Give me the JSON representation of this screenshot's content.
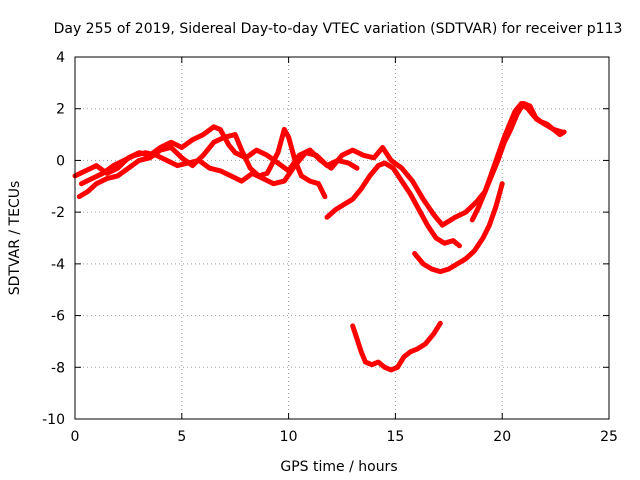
{
  "chart_data": {
    "type": "scatter",
    "title": "Day 255 of 2019, Sidereal Day-to-day VTEC variation (SDTVAR) for receiver p113",
    "xlabel": "GPS time / hours",
    "ylabel": "SDTVAR / TECUs",
    "xlim": [
      0,
      25
    ],
    "ylim": [
      -10,
      4
    ],
    "xticks": [
      0,
      5,
      10,
      15,
      20,
      25
    ],
    "yticks": [
      -10,
      -8,
      -6,
      -4,
      -2,
      0,
      2,
      4
    ],
    "xtick_labels": [
      "0",
      "5",
      "10",
      "15",
      "20",
      "25"
    ],
    "ytick_labels": [
      "-10",
      "-8",
      "-6",
      "-4",
      "-2",
      "0",
      "2",
      "4"
    ],
    "grid": true,
    "legend": "none",
    "marker": "+",
    "color": "#ff0000",
    "series": [
      {
        "name": "track-1",
        "points": [
          [
            0,
            -0.6
          ],
          [
            0.5,
            -0.4
          ],
          [
            1,
            -0.2
          ],
          [
            1.5,
            -0.5
          ],
          [
            2,
            -0.3
          ],
          [
            2.5,
            0.1
          ],
          [
            3,
            0.3
          ],
          [
            3.5,
            0.2
          ],
          [
            4,
            0.5
          ],
          [
            4.5,
            0.7
          ],
          [
            5,
            0.5
          ],
          [
            5.5,
            0.8
          ],
          [
            6,
            1.0
          ],
          [
            6.5,
            1.3
          ],
          [
            6.8,
            1.2
          ],
          [
            7.2,
            0.6
          ],
          [
            7.5,
            0.3
          ],
          [
            8,
            0.1
          ],
          [
            8.5,
            0.4
          ],
          [
            9,
            0.2
          ],
          [
            9.5,
            -0.1
          ],
          [
            10,
            -0.4
          ],
          [
            10.5,
            0.2
          ],
          [
            11,
            0.4
          ],
          [
            11.5,
            0.0
          ],
          [
            12,
            -0.3
          ],
          [
            12.5,
            0.2
          ],
          [
            13,
            0.4
          ],
          [
            13.5,
            0.2
          ],
          [
            14,
            0.1
          ],
          [
            14.4,
            0.5
          ],
          [
            14.8,
            0.0
          ],
          [
            15.3,
            -0.3
          ],
          [
            15.8,
            -0.8
          ],
          [
            16.3,
            -1.5
          ],
          [
            16.8,
            -2.1
          ],
          [
            17.2,
            -2.5
          ],
          [
            17.8,
            -2.2
          ],
          [
            18.3,
            -2.0
          ],
          [
            18.8,
            -1.6
          ],
          [
            19.2,
            -1.2
          ],
          [
            19.5,
            -0.6
          ],
          [
            19.8,
            0.0
          ],
          [
            20.1,
            0.7
          ],
          [
            20.4,
            1.2
          ],
          [
            20.7,
            1.8
          ],
          [
            21.0,
            2.2
          ],
          [
            21.3,
            2.1
          ],
          [
            21.6,
            1.6
          ],
          [
            22.0,
            1.4
          ],
          [
            22.4,
            1.2
          ],
          [
            22.8,
            1.1
          ]
        ]
      },
      {
        "name": "track-2",
        "points": [
          [
            0.2,
            -1.4
          ],
          [
            0.6,
            -1.2
          ],
          [
            1,
            -0.9
          ],
          [
            1.5,
            -0.7
          ],
          [
            2,
            -0.6
          ],
          [
            2.5,
            -0.3
          ],
          [
            3,
            0.0
          ],
          [
            3.5,
            0.1
          ],
          [
            4,
            0.4
          ],
          [
            4.5,
            0.5
          ],
          [
            5,
            0.1
          ],
          [
            5.5,
            -0.2
          ],
          [
            6,
            0.2
          ],
          [
            6.5,
            0.7
          ],
          [
            7,
            0.9
          ],
          [
            7.5,
            1.0
          ],
          [
            7.8,
            0.4
          ],
          [
            8.2,
            -0.3
          ],
          [
            8.6,
            -0.6
          ],
          [
            9,
            -0.5
          ],
          [
            9.5,
            0.3
          ],
          [
            9.8,
            1.2
          ],
          [
            10,
            0.9
          ],
          [
            10.3,
            0.0
          ],
          [
            10.6,
            -0.6
          ],
          [
            11,
            -0.8
          ],
          [
            11.4,
            -0.9
          ],
          [
            11.7,
            -1.4
          ]
        ]
      },
      {
        "name": "track-3",
        "points": [
          [
            0.3,
            -0.9
          ],
          [
            0.8,
            -0.7
          ],
          [
            1.3,
            -0.5
          ],
          [
            1.8,
            -0.2
          ],
          [
            2.3,
            0.0
          ],
          [
            2.8,
            0.2
          ],
          [
            3.3,
            0.3
          ],
          [
            3.8,
            0.2
          ],
          [
            4.3,
            0.0
          ],
          [
            4.8,
            -0.2
          ],
          [
            5.3,
            -0.1
          ],
          [
            5.8,
            0.0
          ],
          [
            6.3,
            -0.3
          ],
          [
            6.8,
            -0.4
          ],
          [
            7.3,
            -0.6
          ],
          [
            7.8,
            -0.8
          ],
          [
            8.3,
            -0.5
          ],
          [
            8.8,
            -0.7
          ],
          [
            9.3,
            -0.9
          ],
          [
            9.8,
            -0.8
          ],
          [
            10.3,
            -0.2
          ],
          [
            10.8,
            0.3
          ],
          [
            11.3,
            0.2
          ],
          [
            11.8,
            -0.2
          ],
          [
            12.3,
            0.0
          ],
          [
            12.8,
            -0.1
          ],
          [
            13.2,
            -0.3
          ]
        ]
      },
      {
        "name": "track-4",
        "points": [
          [
            11.8,
            -2.2
          ],
          [
            12.2,
            -1.9
          ],
          [
            12.6,
            -1.7
          ],
          [
            13.0,
            -1.5
          ],
          [
            13.4,
            -1.1
          ],
          [
            13.8,
            -0.6
          ],
          [
            14.2,
            -0.2
          ],
          [
            14.5,
            -0.1
          ],
          [
            14.9,
            -0.3
          ],
          [
            15.3,
            -0.8
          ],
          [
            15.7,
            -1.3
          ],
          [
            16.1,
            -1.9
          ],
          [
            16.5,
            -2.5
          ],
          [
            16.9,
            -3.0
          ],
          [
            17.3,
            -3.2
          ],
          [
            17.7,
            -3.1
          ],
          [
            18.0,
            -3.3
          ]
        ]
      },
      {
        "name": "track-5",
        "points": [
          [
            15.9,
            -3.6
          ],
          [
            16.3,
            -4.0
          ],
          [
            16.7,
            -4.2
          ],
          [
            17.1,
            -4.3
          ],
          [
            17.5,
            -4.2
          ],
          [
            17.9,
            -4.0
          ],
          [
            18.3,
            -3.8
          ],
          [
            18.7,
            -3.5
          ],
          [
            19.1,
            -3.0
          ],
          [
            19.4,
            -2.5
          ],
          [
            19.7,
            -1.8
          ],
          [
            19.9,
            -1.2
          ],
          [
            20.0,
            -0.9
          ]
        ]
      },
      {
        "name": "track-6",
        "points": [
          [
            18.6,
            -2.3
          ],
          [
            18.9,
            -1.8
          ],
          [
            19.2,
            -1.2
          ],
          [
            19.5,
            -0.5
          ],
          [
            19.8,
            0.2
          ],
          [
            20.1,
            0.9
          ],
          [
            20.4,
            1.5
          ],
          [
            20.6,
            1.9
          ],
          [
            20.9,
            2.2
          ],
          [
            21.2,
            2.0
          ],
          [
            21.5,
            1.7
          ],
          [
            21.8,
            1.5
          ],
          [
            22.1,
            1.4
          ],
          [
            22.4,
            1.2
          ],
          [
            22.7,
            1.0
          ],
          [
            22.9,
            1.1
          ]
        ]
      },
      {
        "name": "track-7",
        "points": [
          [
            13.0,
            -6.4
          ],
          [
            13.2,
            -6.9
          ],
          [
            13.4,
            -7.4
          ],
          [
            13.6,
            -7.8
          ],
          [
            13.9,
            -7.9
          ],
          [
            14.2,
            -7.8
          ],
          [
            14.5,
            -8.0
          ],
          [
            14.8,
            -8.1
          ],
          [
            15.1,
            -8.0
          ],
          [
            15.4,
            -7.6
          ],
          [
            15.7,
            -7.4
          ],
          [
            16.0,
            -7.3
          ],
          [
            16.4,
            -7.1
          ],
          [
            16.8,
            -6.7
          ],
          [
            17.1,
            -6.3
          ]
        ]
      }
    ]
  }
}
